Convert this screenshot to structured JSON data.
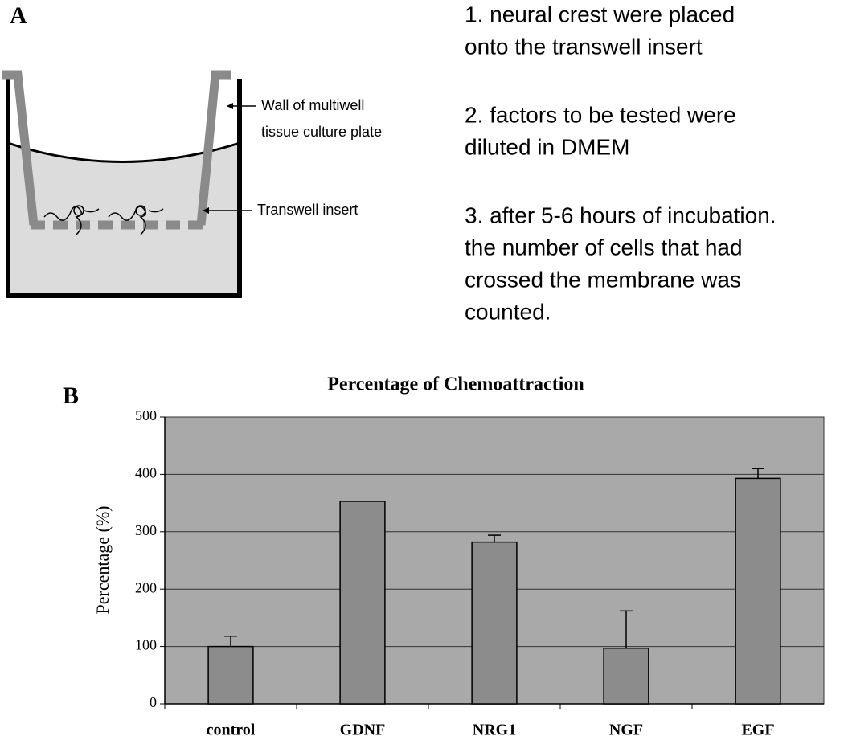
{
  "panel_a": {
    "label": "A",
    "callouts": [
      [
        "Wall of multiwell",
        "tissue culture plate"
      ],
      [
        "Transwell insert"
      ]
    ],
    "steps": [
      [
        "1. neural crest were placed",
        "onto the transwell insert"
      ],
      [
        "2. factors to be tested were",
        "diluted in DMEM"
      ],
      [
        "3. after 5-6 hours of incubation.",
        "the number of cells that had",
        "crossed the membrane was",
        "counted."
      ]
    ]
  },
  "panel_b_label": "B",
  "chart_data": {
    "type": "bar",
    "title": "Percentage of Chemoattraction",
    "y_label": "Percentage (%)",
    "categories": [
      "control",
      "GDNF",
      "NRG1",
      "NGF",
      "EGF"
    ],
    "values": [
      100,
      353,
      282,
      97,
      393
    ],
    "errors": [
      18,
      null,
      12,
      65,
      17
    ],
    "color": "#8c8c8c",
    "background": "#a9a9a9",
    "ylim": [
      0,
      500
    ],
    "yticks": [
      0,
      100,
      200,
      300,
      400,
      500
    ],
    "grid": true
  }
}
